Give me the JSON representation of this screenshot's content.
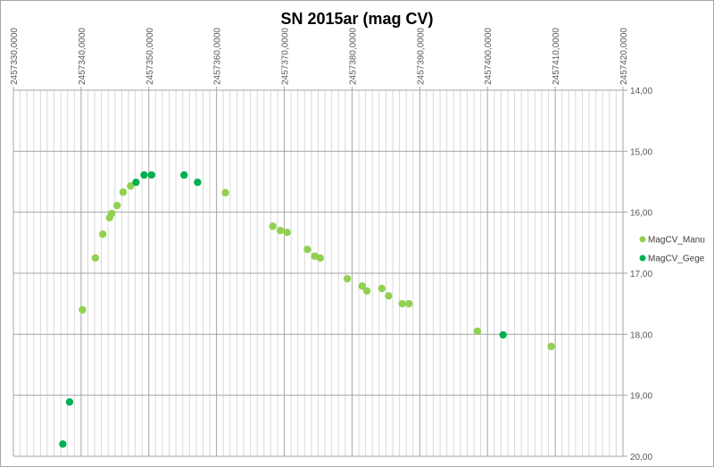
{
  "chart_data": {
    "type": "scatter",
    "title": "SN 2015ar (mag CV)",
    "xlabel": "",
    "ylabel": "",
    "xlim": [
      2457330,
      2457420
    ],
    "ylim": [
      14,
      20
    ],
    "y_reversed": true,
    "x_axis_position": "top",
    "y_axis_position": "right",
    "grid": true,
    "x_major_step": 10,
    "x_minor_step": 1,
    "y_major_step": 1,
    "x_tick_labels": [
      "2457330,0000",
      "2457340,0000",
      "2457350,0000",
      "2457360,0000",
      "2457370,0000",
      "2457380,0000",
      "2457390,0000",
      "2457400,0000",
      "2457410,0000",
      "2457420,0000"
    ],
    "y_tick_labels": [
      "14,00",
      "15,00",
      "16,00",
      "17,00",
      "18,00",
      "19,00",
      "20,00"
    ],
    "legend_position": "right",
    "series": [
      {
        "name": "MagCV_Manu",
        "color": "#92d050",
        "points": [
          [
            2457340.2,
            17.6
          ],
          [
            2457342.1,
            16.75
          ],
          [
            2457343.2,
            16.36
          ],
          [
            2457344.2,
            16.09
          ],
          [
            2457344.5,
            16.02
          ],
          [
            2457345.3,
            15.89
          ],
          [
            2457346.2,
            15.67
          ],
          [
            2457347.3,
            15.57
          ],
          [
            2457361.3,
            15.68
          ],
          [
            2457368.3,
            16.23
          ],
          [
            2457369.4,
            16.3
          ],
          [
            2457370.4,
            16.33
          ],
          [
            2457373.4,
            16.61
          ],
          [
            2457374.5,
            16.72
          ],
          [
            2457375.3,
            16.75
          ],
          [
            2457379.3,
            17.09
          ],
          [
            2457381.5,
            17.21
          ],
          [
            2457382.2,
            17.29
          ],
          [
            2457384.4,
            17.25
          ],
          [
            2457385.4,
            17.37
          ],
          [
            2457387.4,
            17.5
          ],
          [
            2457388.4,
            17.5
          ],
          [
            2457398.5,
            17.95
          ],
          [
            2457409.4,
            18.2
          ]
        ]
      },
      {
        "name": "MagCV_Gege",
        "color": "#00b050",
        "points": [
          [
            2457337.3,
            19.8
          ],
          [
            2457338.3,
            19.11
          ],
          [
            2457348.1,
            15.51
          ],
          [
            2457349.3,
            15.39
          ],
          [
            2457350.4,
            15.39
          ],
          [
            2457355.2,
            15.39
          ],
          [
            2457357.2,
            15.51
          ],
          [
            2457402.3,
            18.01
          ]
        ]
      }
    ]
  }
}
